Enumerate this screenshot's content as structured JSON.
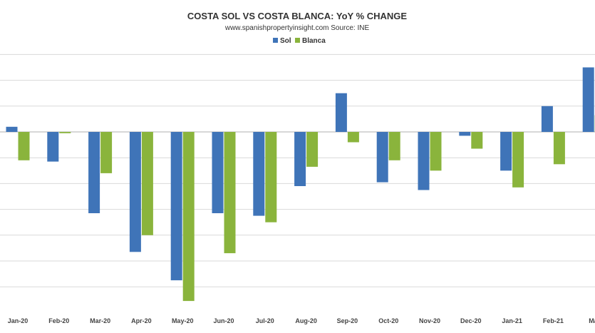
{
  "chart_data": {
    "type": "bar",
    "title": "COSTA SOL VS COSTA BLANCA: YoY % CHANGE",
    "subtitle": "www.spanishpropertyinsight.com Source: INE",
    "xlabel": "",
    "ylabel": "",
    "ylim": [
      -65,
      30
    ],
    "gridlines": [
      30,
      20,
      10,
      0,
      -10,
      -20,
      -30,
      -40,
      -50,
      -60
    ],
    "grid": true,
    "legend_position": "top-center",
    "categories": [
      "Jan-20",
      "Feb-20",
      "Mar-20",
      "Apr-20",
      "May-20",
      "Jun-20",
      "Jul-20",
      "Aug-20",
      "Sep-20",
      "Oct-20",
      "Nov-20",
      "Dec-20",
      "Jan-21",
      "Feb-21",
      "Mar"
    ],
    "series": [
      {
        "name": "Sol",
        "color": "#3f74b8",
        "values": [
          2,
          -11.5,
          -31.5,
          -46.5,
          -57.5,
          -31.5,
          -32.5,
          -21,
          15,
          -19.5,
          -22.5,
          -1.5,
          -15,
          10,
          25
        ]
      },
      {
        "name": "Blanca",
        "color": "#8ab43c",
        "values": [
          -11,
          -0.5,
          -16,
          -40,
          -65.5,
          -47,
          -35,
          -13.5,
          -4,
          -11,
          -15,
          -6.5,
          -21.5,
          -12.5,
          6.5
        ]
      }
    ]
  }
}
